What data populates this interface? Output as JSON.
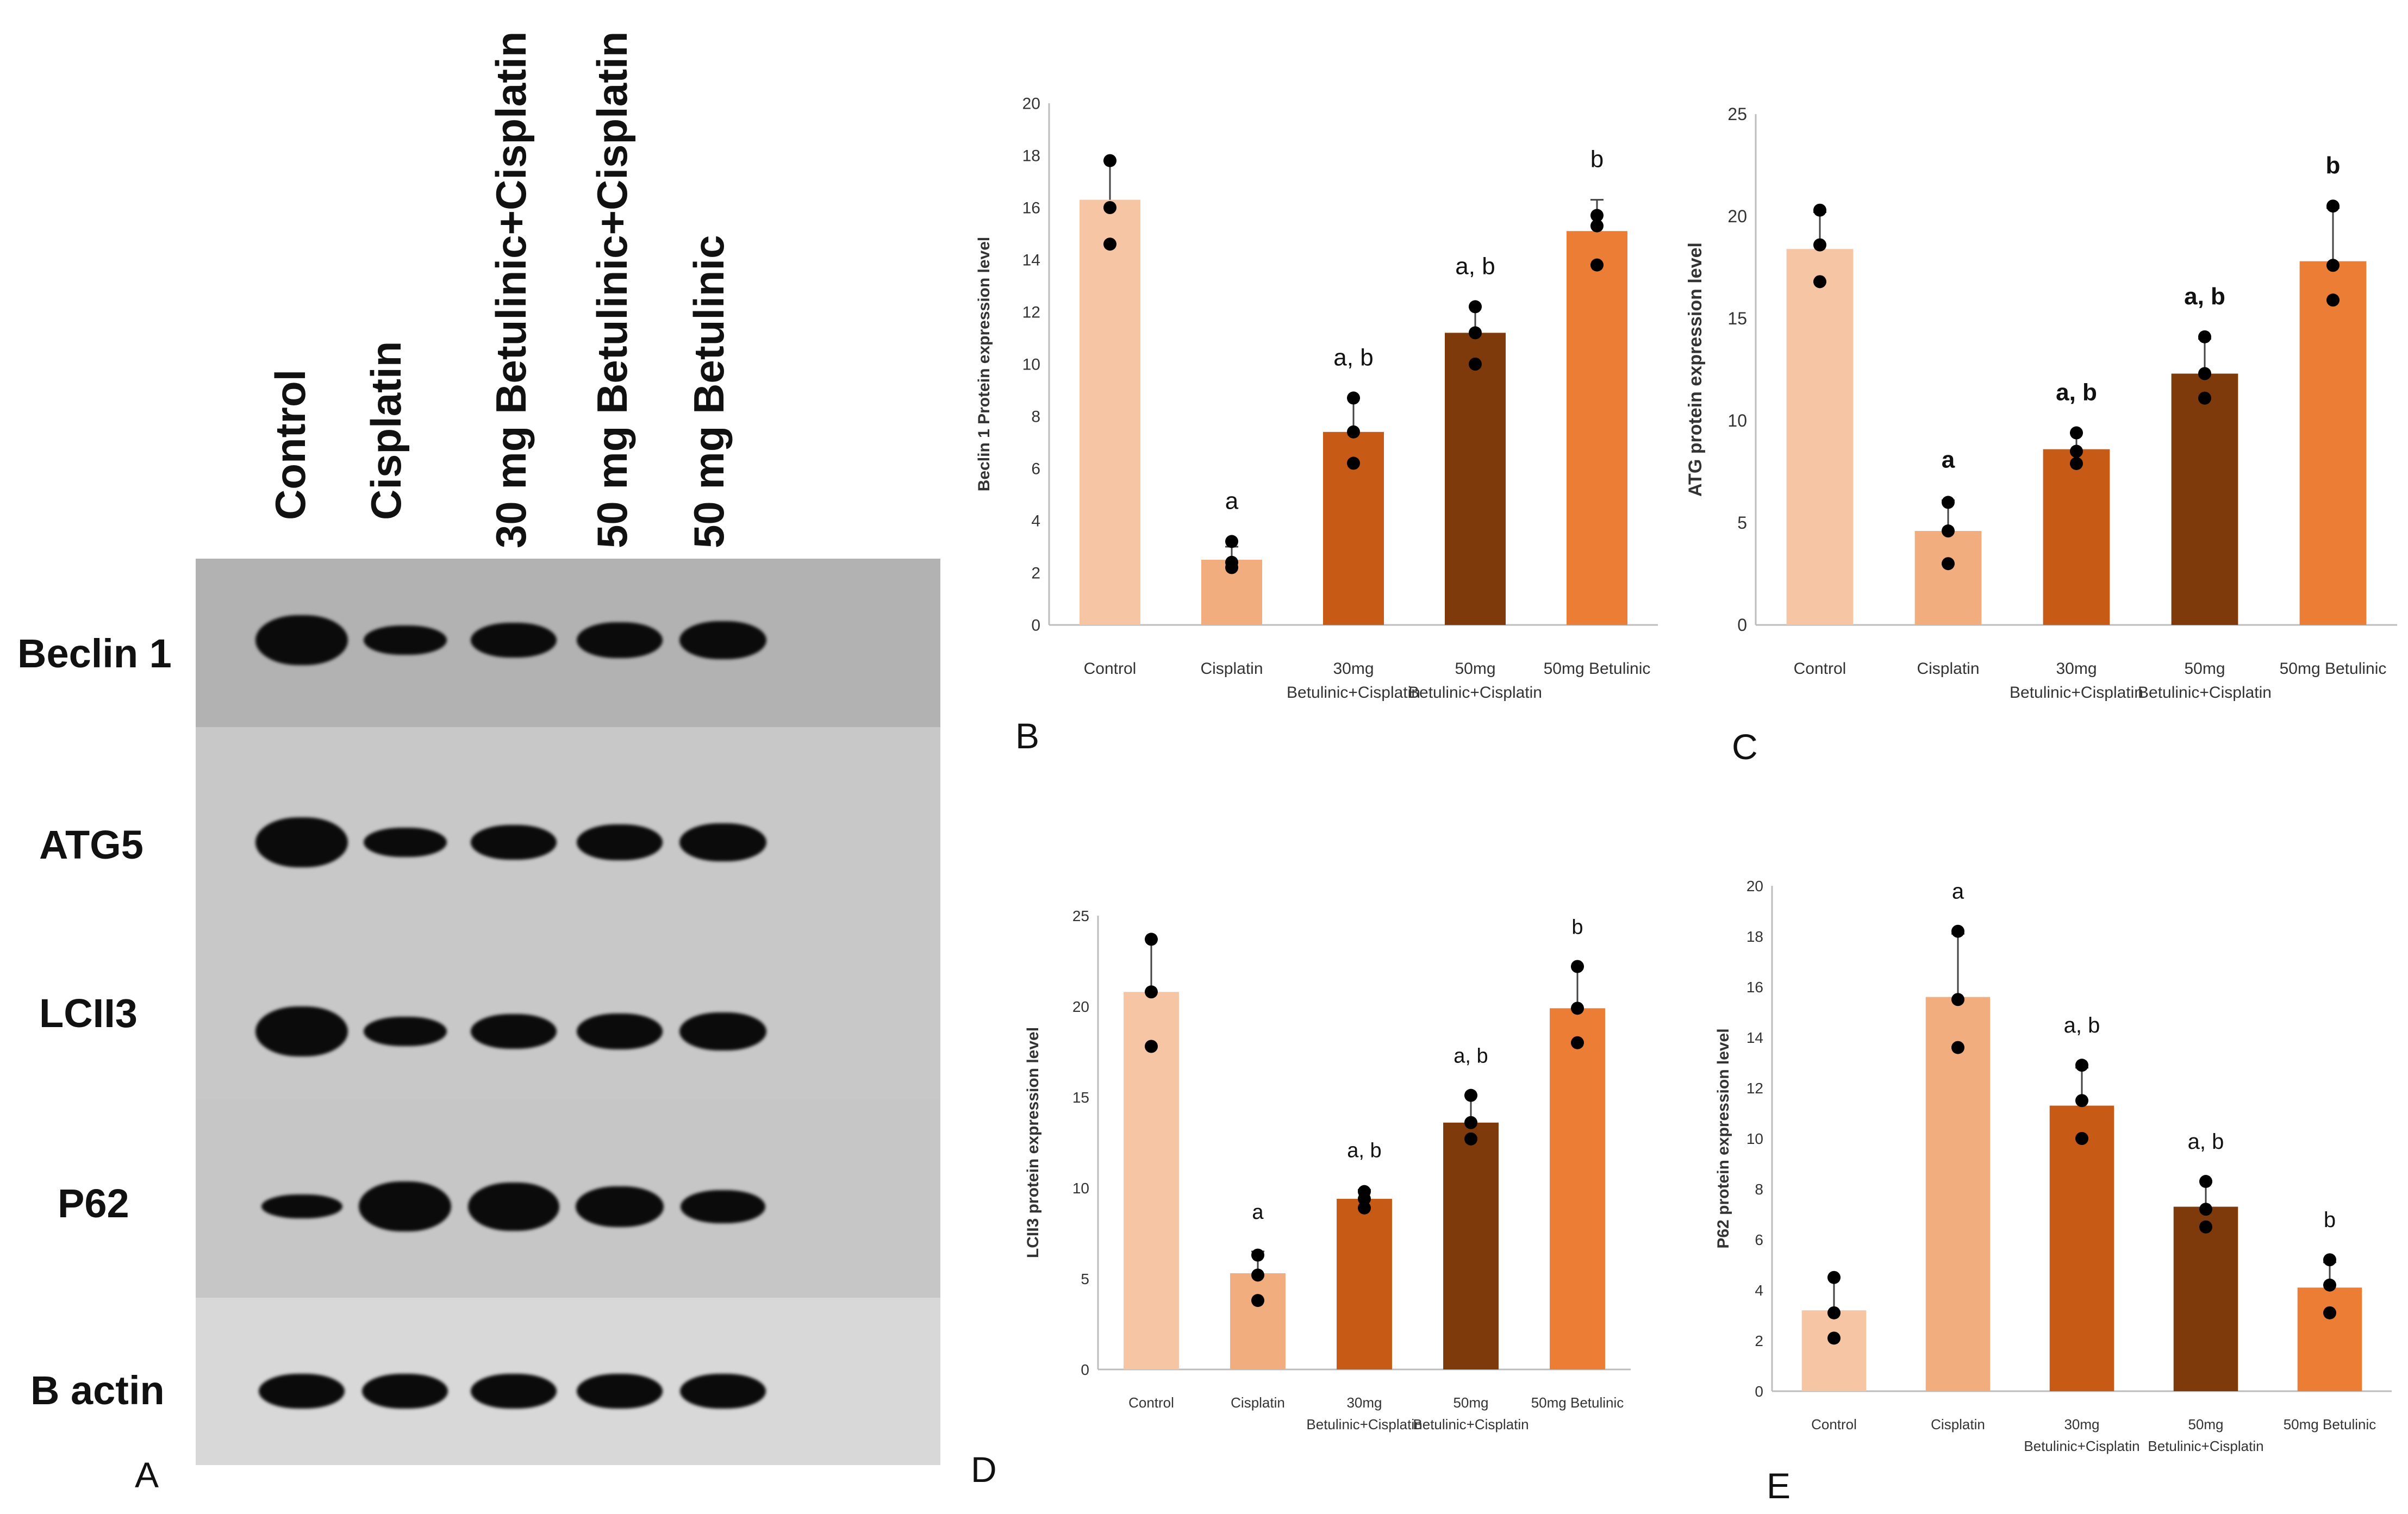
{
  "panel_letters": {
    "a": "A",
    "b": "B",
    "c": "C",
    "d": "D",
    "e": "E"
  },
  "blot": {
    "lanes": [
      "Control",
      "Cisplatin",
      "30 mg Betulinic+Cisplatin",
      "50 mg Betulinic+Cisplatin",
      "50 mg Betulinic"
    ],
    "proteins": [
      "Beclin 1",
      "ATG5",
      "LCII3",
      "P62",
      "B actin"
    ],
    "band_intensity": [
      [
        1.0,
        0.45,
        0.6,
        0.62,
        0.68
      ],
      [
        1.0,
        0.45,
        0.6,
        0.62,
        0.68
      ],
      [
        1.0,
        0.45,
        0.6,
        0.62,
        0.68
      ],
      [
        0.3,
        1.0,
        0.95,
        0.75,
        0.55
      ],
      [
        0.6,
        0.6,
        0.6,
        0.6,
        0.6
      ]
    ],
    "colors": {
      "band": "#0b0b0b",
      "strip_top": "#b0b0b0",
      "strip_mid": "#c8c8c8",
      "strip_bottom": "#d9d9d9"
    }
  },
  "chart_data": [
    {
      "panel": "B",
      "type": "bar",
      "ylabel": "Beclin 1 Protein expression level",
      "ylim": [
        0,
        20
      ],
      "yticks": [
        0,
        2,
        4,
        6,
        8,
        10,
        12,
        14,
        16,
        18,
        20
      ],
      "categories": [
        [
          "Control"
        ],
        [
          "Cisplatin"
        ],
        [
          "30mg",
          "Betulinic+Cisplatin"
        ],
        [
          "50mg",
          "Betulinic+Cisplatin"
        ],
        [
          "50mg Betulinic"
        ]
      ],
      "values": [
        16.3,
        2.5,
        7.4,
        11.2,
        15.1
      ],
      "errors": [
        1.5,
        0.5,
        1.3,
        1.0,
        1.2
      ],
      "points": [
        [
          17.8,
          16.0,
          14.6
        ],
        [
          3.2,
          2.4,
          2.2
        ],
        [
          8.7,
          7.4,
          6.2
        ],
        [
          12.2,
          11.2,
          10.0
        ],
        [
          15.7,
          15.3,
          13.8
        ]
      ],
      "annotations": [
        "",
        "a",
        "a, b",
        "a, b",
        "b"
      ],
      "colors": [
        "#f6c6a4",
        "#f1ad7e",
        "#c75a14",
        "#7f3a0c",
        "#eb7e34"
      ]
    },
    {
      "panel": "C",
      "type": "bar",
      "ylabel": "ATG protein expression level",
      "ylim": [
        0,
        25
      ],
      "yticks": [
        0,
        5,
        10,
        15,
        20,
        25
      ],
      "categories": [
        [
          "Control"
        ],
        [
          "Cisplatin"
        ],
        [
          "30mg",
          "Betulinic+Cisplatin"
        ],
        [
          "50mg",
          "Betulinic+Cisplatin"
        ],
        [
          "50mg Betulinic"
        ]
      ],
      "values": [
        18.4,
        4.6,
        8.6,
        12.3,
        17.8
      ],
      "errors": [
        1.8,
        1.5,
        0.8,
        1.7,
        2.6
      ],
      "points": [
        [
          20.3,
          18.6,
          16.8
        ],
        [
          6.0,
          4.6,
          3.0
        ],
        [
          9.4,
          8.5,
          7.9
        ],
        [
          14.1,
          12.3,
          11.1
        ],
        [
          20.5,
          17.6,
          15.9
        ]
      ],
      "annotations": [
        "",
        "a",
        "a, b",
        "a, b",
        "b"
      ],
      "colors": [
        "#f6c6a4",
        "#f1ad7e",
        "#c75a14",
        "#7f3a0c",
        "#eb7e34"
      ]
    },
    {
      "panel": "D",
      "type": "bar",
      "ylabel": "LCII3 protein expression level",
      "ylim": [
        0,
        25
      ],
      "yticks": [
        0,
        5,
        10,
        15,
        20,
        25
      ],
      "categories": [
        [
          "Control"
        ],
        [
          "Cisplatin"
        ],
        [
          "30mg",
          "Betulinic+Cisplatin"
        ],
        [
          "50mg",
          "Betulinic+Cisplatin"
        ],
        [
          "50mg Betulinic"
        ]
      ],
      "values": [
        20.8,
        5.3,
        9.4,
        13.6,
        19.9
      ],
      "errors": [
        2.9,
        1.2,
        0.5,
        1.5,
        2.3
      ],
      "points": [
        [
          23.7,
          20.8,
          17.8
        ],
        [
          6.3,
          5.2,
          3.8
        ],
        [
          9.8,
          9.4,
          8.9
        ],
        [
          15.1,
          13.6,
          12.7
        ],
        [
          22.2,
          19.9,
          18.0
        ]
      ],
      "annotations": [
        "",
        "a",
        "a, b",
        "a, b",
        "b"
      ],
      "colors": [
        "#f6c6a4",
        "#f1ad7e",
        "#c75a14",
        "#7f3a0c",
        "#eb7e34"
      ]
    },
    {
      "panel": "E",
      "type": "bar",
      "ylabel": "P62 protein expression level",
      "ylim": [
        0,
        20
      ],
      "yticks": [
        0,
        2,
        4,
        6,
        8,
        10,
        12,
        14,
        16,
        18,
        20
      ],
      "categories": [
        [
          "Control"
        ],
        [
          "Cisplatin"
        ],
        [
          "30mg",
          "Betulinic+Cisplatin"
        ],
        [
          "50mg",
          "Betulinic+Cisplatin"
        ],
        [
          "50mg Betulinic"
        ]
      ],
      "values": [
        3.2,
        15.6,
        11.3,
        7.3,
        4.1
      ],
      "errors": [
        1.3,
        2.5,
        1.5,
        1.0,
        1.0
      ],
      "points": [
        [
          4.5,
          3.1,
          2.1
        ],
        [
          18.2,
          15.5,
          13.6
        ],
        [
          12.9,
          11.5,
          10.0
        ],
        [
          8.3,
          7.2,
          6.5
        ],
        [
          5.2,
          4.2,
          3.1
        ]
      ],
      "annotations": [
        "",
        "a",
        "a, b",
        "a, b",
        "b"
      ],
      "colors": [
        "#f6c6a4",
        "#f1ad7e",
        "#c75a14",
        "#7f3a0c",
        "#eb7e34"
      ]
    }
  ]
}
